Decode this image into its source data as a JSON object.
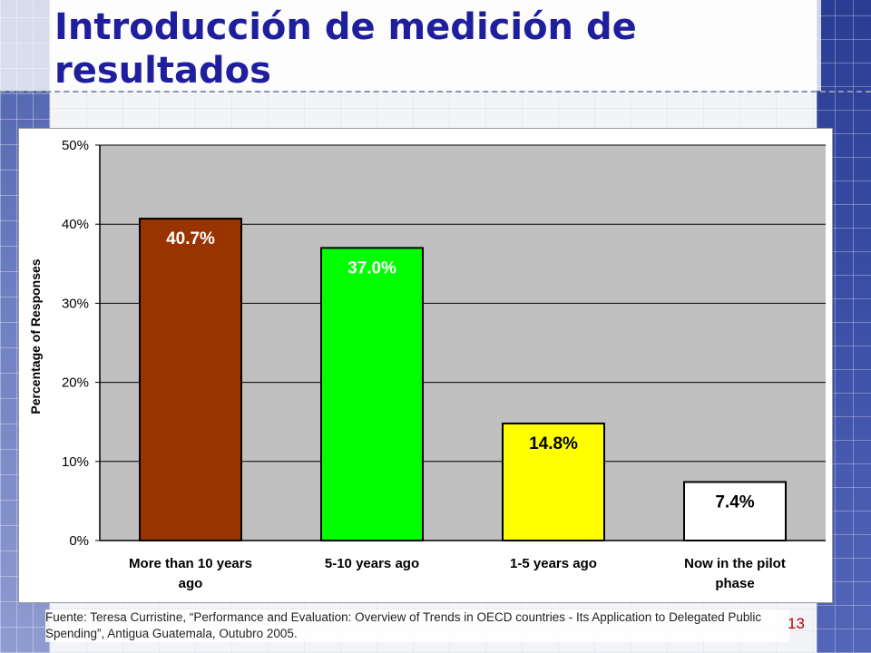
{
  "slide": {
    "title": "Introducción de medición de resultados",
    "source_note": "Fuente: Teresa Curristine, “Performance and Evaluation: Overview of Trends in OECD countries - Its Application to Delegated Public Spending”, Antigua Guatemala, Outubro 2005.",
    "page_number": "13",
    "colors": {
      "title": "#1f1f9e",
      "page_number": "#c00000",
      "plot_background": "#c0c0c0"
    }
  },
  "chart_data": {
    "type": "bar",
    "title": "",
    "xlabel": "",
    "ylabel": "Percentage of Responses",
    "categories": [
      [
        "More than 10 years",
        "ago"
      ],
      [
        "5-10 years ago"
      ],
      [
        "1-5 years ago"
      ],
      [
        "Now in the pilot",
        "phase"
      ]
    ],
    "values": [
      40.7,
      37.0,
      14.8,
      7.4
    ],
    "data_labels": [
      "40.7%",
      "37.0%",
      "14.8%",
      "7.4%"
    ],
    "bar_colors": [
      "#993300",
      "#00ff00",
      "#ffff00",
      "#ffffff"
    ],
    "label_colors": [
      "#ffffff",
      "#ffffff",
      "#000000",
      "#000000"
    ],
    "ylim": [
      0,
      50
    ],
    "yticks": [
      "0%",
      "10%",
      "20%",
      "30%",
      "40%",
      "50%"
    ],
    "grid": true,
    "legend": "none"
  }
}
